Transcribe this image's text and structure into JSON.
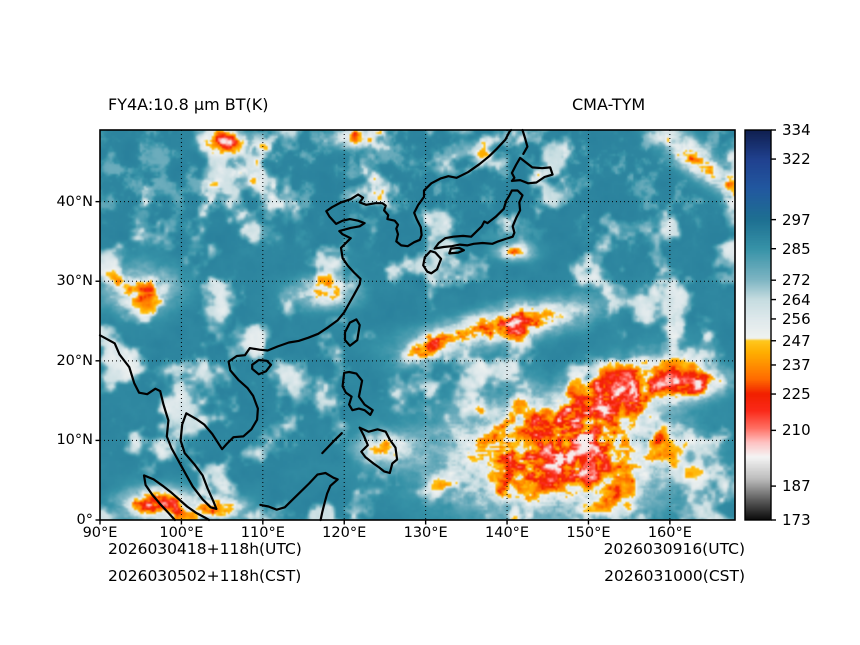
{
  "figure": {
    "title_left": "FY4A:10.8 μm BT(K)",
    "title_right": "CMA-TYM",
    "footer_left_line1": "2026030418+118h(UTC)",
    "footer_left_line2": "2026030502+118h(CST)",
    "footer_right_line1": "2026030916(UTC)",
    "footer_right_line2": "2026031000(CST)"
  },
  "chart_data": {
    "type": "heatmap",
    "title": "FY4A:10.8 μm BT(K)",
    "model": "CMA-TYM",
    "quantity": "10.8 micron brightness temperature (K), simulated satellite imagery",
    "lon_range": [
      90,
      168
    ],
    "lat_range": [
      0,
      49
    ],
    "x_axis": {
      "values": [
        90,
        100,
        110,
        120,
        130,
        140,
        150,
        160
      ],
      "ticks": [
        "90°E",
        "100°E",
        "110°E",
        "120°E",
        "130°E",
        "140°E",
        "150°E",
        "160°E"
      ]
    },
    "y_axis": {
      "values": [
        0,
        10,
        20,
        30,
        40
      ],
      "ticks": [
        "0°",
        "10°N",
        "20°N",
        "30°N",
        "40°N"
      ]
    },
    "grid": "dotted, every 10 degrees",
    "colorbar": {
      "range": [
        173,
        334
      ],
      "ticks": [
        334,
        322,
        297,
        285,
        272,
        264,
        256,
        247,
        237,
        225,
        210,
        187,
        173
      ],
      "colormap": [
        [
          173,
          "#0a0a0a"
        ],
        [
          181,
          "#5a5a5a"
        ],
        [
          190,
          "#bdbdbd"
        ],
        [
          199,
          "#f5f5f5"
        ],
        [
          205,
          "#ffc2c2"
        ],
        [
          211,
          "#ff6e62"
        ],
        [
          218,
          "#fb2a1a"
        ],
        [
          225,
          "#f22000"
        ],
        [
          231,
          "#ff6a00"
        ],
        [
          237,
          "#ff9000"
        ],
        [
          242,
          "#ffae00"
        ],
        [
          247,
          "#ffc81e"
        ],
        [
          248,
          "#f0f3f1"
        ],
        [
          256,
          "#dfe9ec"
        ],
        [
          264,
          "#c6dde1"
        ],
        [
          272,
          "#7fb6c4"
        ],
        [
          285,
          "#3793a8"
        ],
        [
          297,
          "#1e7092"
        ],
        [
          310,
          "#2258a0"
        ],
        [
          322,
          "#20418f"
        ],
        [
          334,
          "#10204f"
        ]
      ]
    },
    "cold_cloud_regions": [
      {
        "lon": 146,
        "lat": 8,
        "rx": 16,
        "ry": 8,
        "rot": 0,
        "amp": 1.0,
        "desc": "large tropical deep-convection cluster over western Pacific"
      },
      {
        "lon": 154,
        "lat": 16,
        "rx": 9,
        "ry": 4,
        "rot": 25,
        "amp": 0.8,
        "desc": "convection extending northeast"
      },
      {
        "lon": 163,
        "lat": 17,
        "rx": 5,
        "ry": 2.2,
        "rot": 10,
        "amp": 0.75,
        "desc": "cold cloud streaks near right edge"
      },
      {
        "lon": 140,
        "lat": 24.5,
        "rx": 12,
        "ry": 2.6,
        "rot": 12,
        "amp": 0.8,
        "desc": "elongated frontal cloud band"
      },
      {
        "lon": 130,
        "lat": 21.5,
        "rx": 4,
        "ry": 1.8,
        "rot": 25,
        "amp": 0.6,
        "desc": "west end of frontal band"
      },
      {
        "lon": 97,
        "lat": 2,
        "rx": 5,
        "ry": 2.4,
        "rot": 0,
        "amp": 0.95,
        "desc": "deep convection near Sumatra"
      },
      {
        "lon": 104.5,
        "lat": 1.5,
        "rx": 4,
        "ry": 1.8,
        "rot": 0,
        "amp": 0.7,
        "desc": "equatorial convection spots"
      },
      {
        "lon": 117.5,
        "lat": 28.5,
        "rx": 4.5,
        "ry": 2.2,
        "rot": 0,
        "amp": 0.6,
        "desc": "orange cloud patch over SE China"
      },
      {
        "lon": 95,
        "lat": 29,
        "rx": 5.5,
        "ry": 3.5,
        "rot": 0,
        "amp": 0.5,
        "desc": "scattered cold tops over plateau"
      },
      {
        "lon": 106,
        "lat": 47.5,
        "rx": 4,
        "ry": 1.5,
        "rot": 0,
        "amp": 0.55,
        "desc": "cold patch near top edge"
      },
      {
        "lon": 121,
        "lat": 48,
        "rx": 3.5,
        "ry": 1.5,
        "rot": 0,
        "amp": 0.6,
        "desc": "cold patch near top edge"
      },
      {
        "lon": 163,
        "lat": 45.5,
        "rx": 7,
        "ry": 2.2,
        "rot": -40,
        "amp": 0.7,
        "desc": "diagonal cold streak top-right corner"
      },
      {
        "lon": 141,
        "lat": 33.8,
        "rx": 3,
        "ry": 1.4,
        "rot": 0,
        "amp": 0.55,
        "desc": "orange patch south of Honshu"
      },
      {
        "lon": 125,
        "lat": 9,
        "rx": 4,
        "ry": 2.5,
        "rot": 0,
        "amp": 0.6,
        "desc": "convection near Philippines"
      }
    ],
    "coastlines": {
      "mainland": [
        [
          90,
          23.2
        ],
        [
          91.8,
          22.2
        ],
        [
          92.4,
          20.8
        ],
        [
          93.6,
          19.2
        ],
        [
          94.2,
          17.2
        ],
        [
          94.8,
          16
        ],
        [
          95.8,
          15.8
        ],
        [
          96.8,
          16.5
        ],
        [
          97.4,
          16.2
        ],
        [
          97.8,
          14.5
        ],
        [
          98.4,
          12.5
        ],
        [
          98.2,
          10.5
        ],
        [
          98.8,
          9
        ],
        [
          99.6,
          7.5
        ],
        [
          100.4,
          6
        ],
        [
          101.4,
          4.2
        ],
        [
          102.6,
          2.6
        ],
        [
          103.6,
          1.6
        ],
        [
          104.3,
          1.4
        ],
        [
          103.9,
          2.4
        ],
        [
          103.2,
          4
        ],
        [
          102.6,
          5.6
        ],
        [
          101.6,
          7
        ],
        [
          100.4,
          8.4
        ],
        [
          99.9,
          10
        ],
        [
          100.1,
          12
        ],
        [
          100.6,
          13.4
        ],
        [
          101.8,
          12.7
        ],
        [
          102.8,
          12
        ],
        [
          103.8,
          10.8
        ],
        [
          105,
          8.9
        ],
        [
          105.6,
          9.6
        ],
        [
          106.4,
          10.4
        ],
        [
          107.6,
          10.5
        ],
        [
          108.6,
          11.4
        ],
        [
          109.3,
          12.6
        ],
        [
          109.4,
          14
        ],
        [
          108.8,
          15.6
        ],
        [
          108.1,
          16.6
        ],
        [
          107,
          17.6
        ],
        [
          106,
          18.8
        ],
        [
          105.8,
          19.9
        ],
        [
          106.8,
          20.6
        ],
        [
          107.8,
          20.7
        ],
        [
          108.4,
          21.6
        ],
        [
          109.6,
          21.4
        ],
        [
          110.6,
          21.3
        ],
        [
          111.8,
          21.8
        ],
        [
          113.2,
          22.3
        ],
        [
          114.4,
          22.5
        ],
        [
          115.6,
          22.9
        ],
        [
          116.8,
          23.4
        ],
        [
          118,
          24.2
        ],
        [
          119.2,
          25.1
        ],
        [
          120,
          26.1
        ],
        [
          120.6,
          27.2
        ],
        [
          121.2,
          28.3
        ],
        [
          121.9,
          29.6
        ],
        [
          122,
          30.3
        ],
        [
          121.2,
          31.1
        ],
        [
          120.4,
          32
        ],
        [
          119.8,
          32.9
        ],
        [
          119.6,
          34.2
        ],
        [
          120.3,
          34.9
        ],
        [
          120.8,
          35.4
        ],
        [
          119.8,
          35.9
        ],
        [
          119.4,
          36.3
        ],
        [
          120.8,
          36.7
        ],
        [
          121.9,
          36.9
        ],
        [
          122.5,
          37.3
        ],
        [
          121.7,
          37.6
        ],
        [
          120.7,
          37.8
        ],
        [
          119.8,
          37.6
        ],
        [
          119,
          37.2
        ],
        [
          118.2,
          38.1
        ],
        [
          117.8,
          38.8
        ],
        [
          118.5,
          39.3
        ],
        [
          119.6,
          39.9
        ],
        [
          120.8,
          40.3
        ],
        [
          121.7,
          40.9
        ],
        [
          122.3,
          40.5
        ],
        [
          121.9,
          39.9
        ],
        [
          122.7,
          39.6
        ],
        [
          123.8,
          39.8
        ],
        [
          124.7,
          39.8
        ],
        [
          125.1,
          39.5
        ],
        [
          124.9,
          38.9
        ],
        [
          125.4,
          38.3
        ],
        [
          125.3,
          37.8
        ],
        [
          126.2,
          37.6
        ],
        [
          126.6,
          37.1
        ],
        [
          126.4,
          36.6
        ],
        [
          126.6,
          35.9
        ],
        [
          126.4,
          35
        ],
        [
          127,
          34.5
        ],
        [
          127.8,
          34.4
        ],
        [
          128.6,
          34.9
        ],
        [
          129.3,
          35.2
        ],
        [
          129.5,
          35.8
        ],
        [
          129.4,
          36.8
        ],
        [
          128.9,
          37.8
        ],
        [
          128.6,
          38.6
        ],
        [
          129.1,
          39.6
        ],
        [
          129.8,
          40.6
        ],
        [
          129.8,
          41.4
        ],
        [
          130.7,
          42.3
        ],
        [
          131.8,
          42.9
        ],
        [
          132.8,
          43.2
        ],
        [
          133.8,
          43
        ],
        [
          135.2,
          43.7
        ],
        [
          136.6,
          44.7
        ],
        [
          137.8,
          45.7
        ],
        [
          138.8,
          46.7
        ],
        [
          139.8,
          47.8
        ],
        [
          140.3,
          48.8
        ],
        [
          140.5,
          49
        ]
      ],
      "kyushu": [
        [
          130.2,
          31.2
        ],
        [
          129.7,
          32
        ],
        [
          129.9,
          33
        ],
        [
          130.6,
          33.8
        ],
        [
          131.2,
          33.6
        ],
        [
          131.9,
          32.8
        ],
        [
          131.4,
          31.5
        ],
        [
          130.7,
          31
        ],
        [
          130.2,
          31.2
        ]
      ],
      "honshu": [
        [
          131.1,
          34.1
        ],
        [
          132.2,
          34.3
        ],
        [
          133.2,
          34.4
        ],
        [
          134.2,
          34.6
        ],
        [
          135.1,
          34.5
        ],
        [
          135.9,
          34.7
        ],
        [
          137,
          34.8
        ],
        [
          138.2,
          34.7
        ],
        [
          138.9,
          35
        ],
        [
          139.8,
          35.3
        ],
        [
          140.7,
          35.6
        ],
        [
          140.9,
          36.1
        ],
        [
          140.7,
          36.9
        ],
        [
          141.1,
          37.9
        ],
        [
          141.6,
          38.9
        ],
        [
          141.5,
          39.9
        ],
        [
          141.9,
          40.8
        ],
        [
          141.3,
          41.4
        ],
        [
          140.6,
          41.4
        ],
        [
          140.3,
          40.8
        ],
        [
          139.9,
          40.1
        ],
        [
          139.6,
          39.1
        ],
        [
          138.6,
          38.1
        ],
        [
          137.6,
          37.3
        ],
        [
          137.2,
          37.5
        ],
        [
          136.9,
          36.9
        ],
        [
          136.1,
          36.1
        ],
        [
          135.6,
          35.6
        ],
        [
          134.6,
          35.7
        ],
        [
          133.4,
          35.6
        ],
        [
          132.4,
          35.4
        ],
        [
          131.6,
          34.8
        ],
        [
          131.1,
          34.1
        ]
      ],
      "shikoku": [
        [
          132.9,
          33.5
        ],
        [
          134,
          33.6
        ],
        [
          134.7,
          33.9
        ],
        [
          134.1,
          34.2
        ],
        [
          133.1,
          34.1
        ],
        [
          132.9,
          33.5
        ]
      ],
      "hokkaido": [
        [
          140.6,
          42.6
        ],
        [
          141.6,
          42.7
        ],
        [
          142.6,
          42.3
        ],
        [
          143.6,
          42.4
        ],
        [
          144.6,
          43.1
        ],
        [
          145.6,
          43.4
        ],
        [
          145.3,
          44.3
        ],
        [
          144.3,
          44.2
        ],
        [
          143.1,
          44.3
        ],
        [
          142.1,
          45.1
        ],
        [
          141.6,
          45.5
        ],
        [
          141.1,
          44.6
        ],
        [
          140.6,
          43.6
        ],
        [
          140.9,
          43
        ],
        [
          140.6,
          42.6
        ]
      ],
      "sakhalin": [
        [
          142,
          46
        ],
        [
          142.5,
          46.9
        ],
        [
          142.2,
          48
        ],
        [
          141.9,
          49
        ]
      ],
      "taiwan": [
        [
          120.1,
          22.6
        ],
        [
          120.7,
          21.9
        ],
        [
          121.6,
          22.6
        ],
        [
          121.9,
          24.5
        ],
        [
          121.5,
          25.2
        ],
        [
          120.7,
          24.8
        ],
        [
          120.1,
          23.6
        ],
        [
          120.1,
          22.6
        ]
      ],
      "hainan": [
        [
          108.7,
          19.5
        ],
        [
          109.5,
          20.1
        ],
        [
          110.5,
          20
        ],
        [
          111,
          19.5
        ],
        [
          110.4,
          18.7
        ],
        [
          109.5,
          18.3
        ],
        [
          108.7,
          19
        ],
        [
          108.7,
          19.5
        ]
      ],
      "luzon": [
        [
          120,
          18.5
        ],
        [
          120.6,
          18.6
        ],
        [
          121.5,
          18.4
        ],
        [
          122.2,
          17.5
        ],
        [
          122,
          16.5
        ],
        [
          121.8,
          15.5
        ],
        [
          122.5,
          14.5
        ],
        [
          123.5,
          13.8
        ],
        [
          123.2,
          13.2
        ],
        [
          122.5,
          13.8
        ],
        [
          121.8,
          14
        ],
        [
          121,
          13.8
        ],
        [
          120.6,
          14.5
        ],
        [
          120.9,
          15.5
        ],
        [
          120.2,
          16
        ],
        [
          119.8,
          16.8
        ],
        [
          120,
          18.5
        ]
      ],
      "mindanao": [
        [
          121.9,
          11.6
        ],
        [
          123,
          11.1
        ],
        [
          124.1,
          11.4
        ],
        [
          125.1,
          11.1
        ],
        [
          125.6,
          10.1
        ],
        [
          126.3,
          9.1
        ],
        [
          126.5,
          7.6
        ],
        [
          125.9,
          7.1
        ],
        [
          125.6,
          5.9
        ],
        [
          124.9,
          6.1
        ],
        [
          124.3,
          6.6
        ],
        [
          123.6,
          7.1
        ],
        [
          122.6,
          7.9
        ],
        [
          122.1,
          8.6
        ],
        [
          122.9,
          9.4
        ],
        [
          122.4,
          10.6
        ],
        [
          121.9,
          11.6
        ]
      ],
      "palawan": [
        [
          117.3,
          8.4
        ],
        [
          118.7,
          9.9
        ],
        [
          119.7,
          10.9
        ]
      ],
      "borneo": [
        [
          109.7,
          1.9
        ],
        [
          110.7,
          1.7
        ],
        [
          111.7,
          1.3
        ],
        [
          112.7,
          1.6
        ],
        [
          113.7,
          2.6
        ],
        [
          114.7,
          3.6
        ],
        [
          115.7,
          4.6
        ],
        [
          116.7,
          5.7
        ],
        [
          117.7,
          5.9
        ],
        [
          118.7,
          5.3
        ],
        [
          119.2,
          5.1
        ],
        [
          118.3,
          4.3
        ],
        [
          117.9,
          3.3
        ],
        [
          117.6,
          2.2
        ],
        [
          117.3,
          1
        ],
        [
          117.1,
          0
        ]
      ],
      "sumatra": [
        [
          99.2,
          0
        ],
        [
          98.4,
          0.9
        ],
        [
          97.4,
          2
        ],
        [
          96.4,
          3.2
        ],
        [
          95.6,
          4.4
        ],
        [
          95.4,
          5.6
        ],
        [
          96.6,
          5.1
        ],
        [
          97.7,
          4.3
        ],
        [
          98.7,
          3.5
        ],
        [
          99.7,
          2.6
        ],
        [
          100.7,
          1.7
        ],
        [
          101.8,
          0.9
        ],
        [
          102.9,
          0.3
        ],
        [
          103.4,
          0
        ]
      ]
    }
  }
}
